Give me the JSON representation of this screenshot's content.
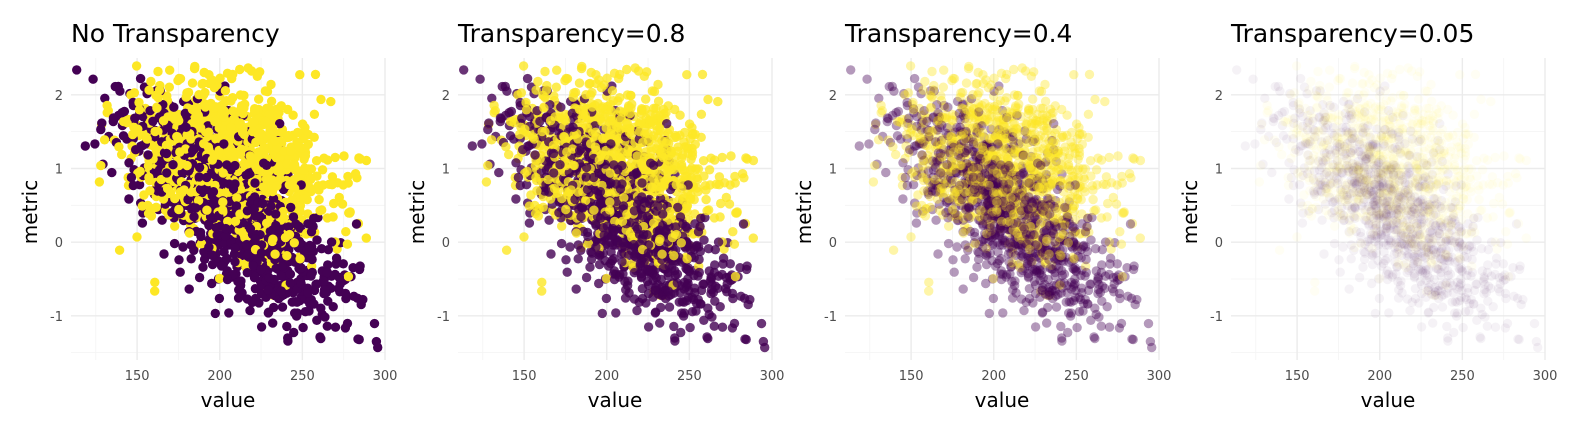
{
  "chart_data": [
    {
      "type": "scatter",
      "title": "No Transparency",
      "xlabel": "value",
      "ylabel": "metric",
      "alpha": 1.0,
      "xlim": [
        110,
        300
      ],
      "ylim": [
        -1.6,
        2.5
      ],
      "x_ticks": [
        150,
        200,
        250,
        300
      ],
      "y_ticks": [
        -1,
        0,
        1,
        2
      ],
      "grid": true,
      "legend": "none"
    },
    {
      "type": "scatter",
      "title": "Transparency=0.8",
      "xlabel": "value",
      "ylabel": "metric",
      "alpha": 0.8,
      "xlim": [
        110,
        300
      ],
      "ylim": [
        -1.6,
        2.5
      ],
      "x_ticks": [
        150,
        200,
        250,
        300
      ],
      "y_ticks": [
        -1,
        0,
        1,
        2
      ],
      "grid": true,
      "legend": "none"
    },
    {
      "type": "scatter",
      "title": "Transparency=0.4",
      "xlabel": "value",
      "ylabel": "metric",
      "alpha": 0.4,
      "xlim": [
        110,
        300
      ],
      "ylim": [
        -1.6,
        2.5
      ],
      "x_ticks": [
        150,
        200,
        250,
        300
      ],
      "y_ticks": [
        -1,
        0,
        1,
        2
      ],
      "grid": true,
      "legend": "none"
    },
    {
      "type": "scatter",
      "title": "Transparency=0.05",
      "xlabel": "value",
      "ylabel": "metric",
      "alpha": 0.05,
      "xlim": [
        110,
        300
      ],
      "ylim": [
        -1.6,
        2.5
      ],
      "x_ticks": [
        150,
        200,
        250,
        300
      ],
      "y_ticks": [
        -1,
        0,
        1,
        2
      ],
      "grid": true,
      "legend": "none"
    }
  ],
  "series_colors": {
    "group_a": "#440154",
    "group_b": "#FDE725"
  },
  "point_clouds": {
    "group_a": {
      "count": 1000,
      "x_mean": 207,
      "x_sd": 34,
      "y_mean": 0.42,
      "y_sd": 0.8,
      "correlation": -0.72
    },
    "group_b": {
      "count": 1000,
      "x_mean": 207,
      "x_sd": 32,
      "y_mean": 1.05,
      "y_sd": 0.6,
      "correlation": -0.3
    }
  }
}
